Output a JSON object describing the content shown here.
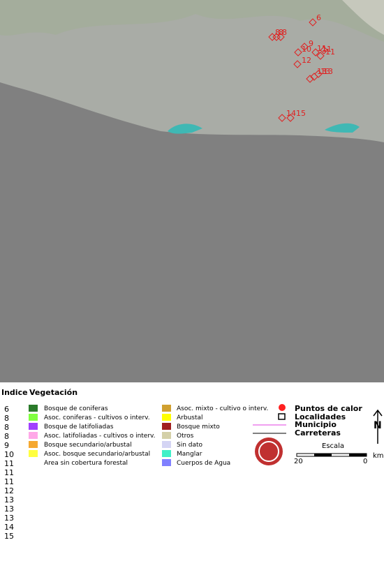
{
  "hotspots": [
    "6",
    "8",
    "8",
    "8",
    "9",
    "10",
    "11",
    "11",
    "11",
    "12",
    "13",
    "13",
    "13",
    "14",
    "15"
  ],
  "legend": {
    "index_header": "Indice",
    "vegetation_header": "Vegetación",
    "vegetation": [
      {
        "label": "Bosque de coniferas",
        "color": "#2a7a2a"
      },
      {
        "label": "Asoc. coniferas - cultivos o interv.",
        "color": "#80ff40"
      },
      {
        "label": "Bosque de latifoliadas",
        "color": "#a040ff"
      },
      {
        "label": "Asoc. latifoliadas - cultivos o interv.",
        "color": "#ffa8e8"
      },
      {
        "label": "Bosque secundario/arbustal",
        "color": "#f5a830"
      },
      {
        "label": "Asoc. bosque secundario/arbustal",
        "color": "#ffff40"
      },
      {
        "label": "Area sin cobertura forestal",
        "color": null
      },
      {
        "label": "Asoc. mixto - cultivo o interv.",
        "color": "#d0a030"
      },
      {
        "label": "Arbustal",
        "color": "#ffff00"
      },
      {
        "label": "Bosque mixto",
        "color": "#a02020"
      },
      {
        "label": "Otros",
        "color": "#d4d0a8"
      },
      {
        "label": "Sin dato",
        "color": "#d4d4f4"
      },
      {
        "label": "Manglar",
        "color": "#40f0c8"
      },
      {
        "label": "Cuerpos de Agua",
        "color": "#8080ff"
      }
    ],
    "symbols": [
      "Puntos de calor",
      "Localidades",
      "Municipio",
      "Carreteras"
    ],
    "scale": {
      "title": "Escala",
      "left": "20",
      "right": "0",
      "unit": "km"
    },
    "north": "N"
  }
}
